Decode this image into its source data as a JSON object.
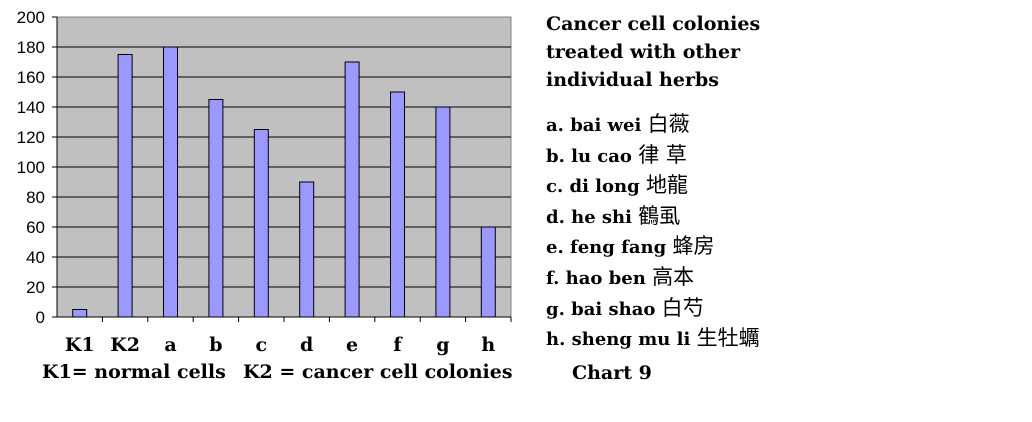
{
  "chart_data": {
    "type": "bar",
    "categories": [
      "K1",
      "K2",
      "a",
      "b",
      "c",
      "d",
      "e",
      "f",
      "g",
      "h"
    ],
    "values": [
      5,
      175,
      180,
      145,
      125,
      90,
      170,
      150,
      140,
      60
    ],
    "ylim": [
      0,
      200
    ],
    "yticks": [
      0,
      20,
      40,
      60,
      80,
      100,
      120,
      140,
      160,
      180,
      200
    ],
    "grid": true,
    "colors": {
      "bar": "#9999ff",
      "bar_edge": "#000000",
      "plot_bg": "#c0c0c0"
    }
  },
  "footnote": {
    "k1": "K1= normal cells",
    "k2": "K2 = cancer cell colonies"
  },
  "title_lines": [
    "Cancer cell colonies",
    "treated with other",
    "individual herbs"
  ],
  "legend": [
    {
      "label": "a. bai wei",
      "zh": "白薇"
    },
    {
      "label": "b. lu cao",
      "zh": "律 草"
    },
    {
      "label": "c. di long",
      "zh": "地龍"
    },
    {
      "label": "d. he shi",
      "zh": "鶴虱"
    },
    {
      "label": "e. feng fang",
      "zh": "蜂房"
    },
    {
      "label": "f. hao ben",
      "zh": "高本"
    },
    {
      "label": "g. bai shao",
      "zh": "白芍"
    },
    {
      "label": "h. sheng mu li",
      "zh": "生牡蠣"
    }
  ],
  "chart_label": "Chart 9"
}
